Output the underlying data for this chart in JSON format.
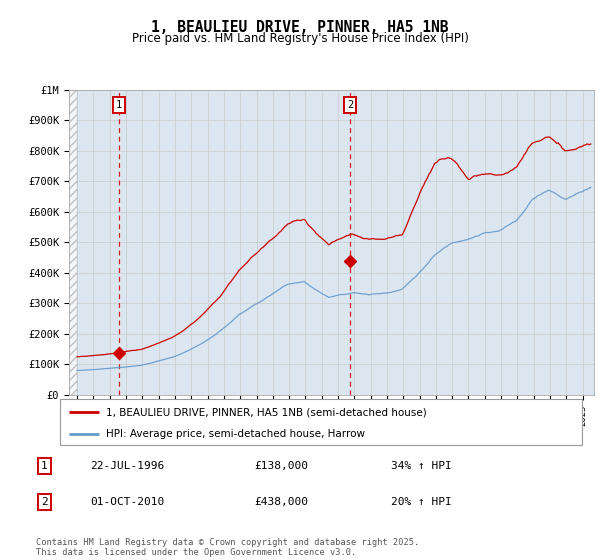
{
  "title": "1, BEAULIEU DRIVE, PINNER, HA5 1NB",
  "subtitle": "Price paid vs. HM Land Registry's House Price Index (HPI)",
  "ylim": [
    0,
    1000000
  ],
  "yticks": [
    0,
    100000,
    200000,
    300000,
    400000,
    500000,
    600000,
    700000,
    800000,
    900000,
    1000000
  ],
  "ytick_labels": [
    "£0",
    "£100K",
    "£200K",
    "£300K",
    "£400K",
    "£500K",
    "£600K",
    "£700K",
    "£800K",
    "£900K",
    "£1M"
  ],
  "sale1_date": 1996.55,
  "sale1_price": 138000,
  "sale2_date": 2010.75,
  "sale2_price": 438000,
  "red_line_color": "#cc0000",
  "blue_line_color": "#6699cc",
  "dashed_line_color": "#cc0000",
  "grid_color": "#cccccc",
  "plot_bg": "#dce6f0",
  "annotation1_date": "22-JUL-1996",
  "annotation1_price": "£138,000",
  "annotation1_hpi": "34% ↑ HPI",
  "annotation2_date": "01-OCT-2010",
  "annotation2_price": "£438,000",
  "annotation2_hpi": "20% ↑ HPI",
  "legend_label1": "1, BEAULIEU DRIVE, PINNER, HA5 1NB (semi-detached house)",
  "legend_label2": "HPI: Average price, semi-detached house, Harrow",
  "footer": "Contains HM Land Registry data © Crown copyright and database right 2025.\nThis data is licensed under the Open Government Licence v3.0.",
  "xlim_start": 1993.5,
  "xlim_end": 2025.7,
  "hatch_end": 1994.0
}
